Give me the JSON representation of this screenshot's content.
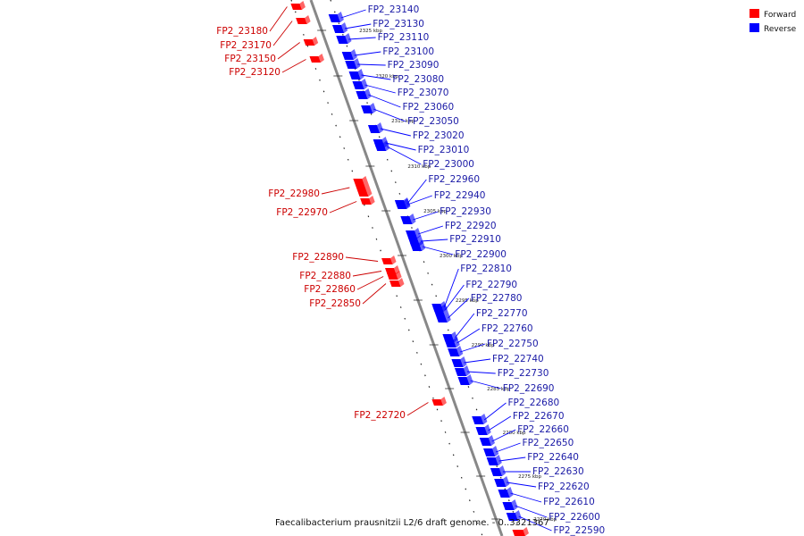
{
  "caption": "Faecalibacterium prausnitzii L2/6 draft genome. - 0..3321367",
  "legend": [
    {
      "label": "Forward",
      "color": "#ff0000"
    },
    {
      "label": "Reverse",
      "color": "#0000ff"
    }
  ],
  "colors": {
    "forward": "#ff0000",
    "forward_label": "#cc0000",
    "reverse": "#0000ff",
    "reverse_label": "#1a1aa6",
    "backbone": "#888888"
  },
  "ticks": [
    {
      "label": "2325 kbp"
    },
    {
      "label": "2320 kbp"
    },
    {
      "label": "2315 kbp"
    },
    {
      "label": "2310 kbp"
    },
    {
      "label": "2305 kbp"
    },
    {
      "label": "2300 kbp"
    },
    {
      "label": "2295 kbp"
    },
    {
      "label": "2290 kbp"
    },
    {
      "label": "2285 kbp"
    },
    {
      "label": "2280 kbp"
    },
    {
      "label": "2275 kbp"
    },
    {
      "label": "2270 kbp"
    }
  ],
  "forward_genes": [
    "FP2_23180",
    "FP2_23170",
    "FP2_23150",
    "FP2_23120",
    "FP2_22980",
    "FP2_22970",
    "FP2_22890",
    "FP2_22880",
    "FP2_22860",
    "FP2_22850",
    "FP2_22720"
  ],
  "reverse_genes": [
    "FP2_23140",
    "FP2_23130",
    "FP2_23110",
    "FP2_23100",
    "FP2_23090",
    "FP2_23080",
    "FP2_23070",
    "FP2_23060",
    "FP2_23050",
    "FP2_23020",
    "FP2_23010",
    "FP2_23000",
    "FP2_22960",
    "FP2_22940",
    "FP2_22930",
    "FP2_22920",
    "FP2_22910",
    "FP2_22900",
    "FP2_22810",
    "FP2_22790",
    "FP2_22780",
    "FP2_22770",
    "FP2_22760",
    "FP2_22750",
    "FP2_22740",
    "FP2_22730",
    "FP2_22690",
    "FP2_22680",
    "FP2_22670",
    "FP2_22660",
    "FP2_22650",
    "FP2_22640",
    "FP2_22630",
    "FP2_22620",
    "FP2_22610",
    "FP2_22600",
    "FP2_22590"
  ]
}
